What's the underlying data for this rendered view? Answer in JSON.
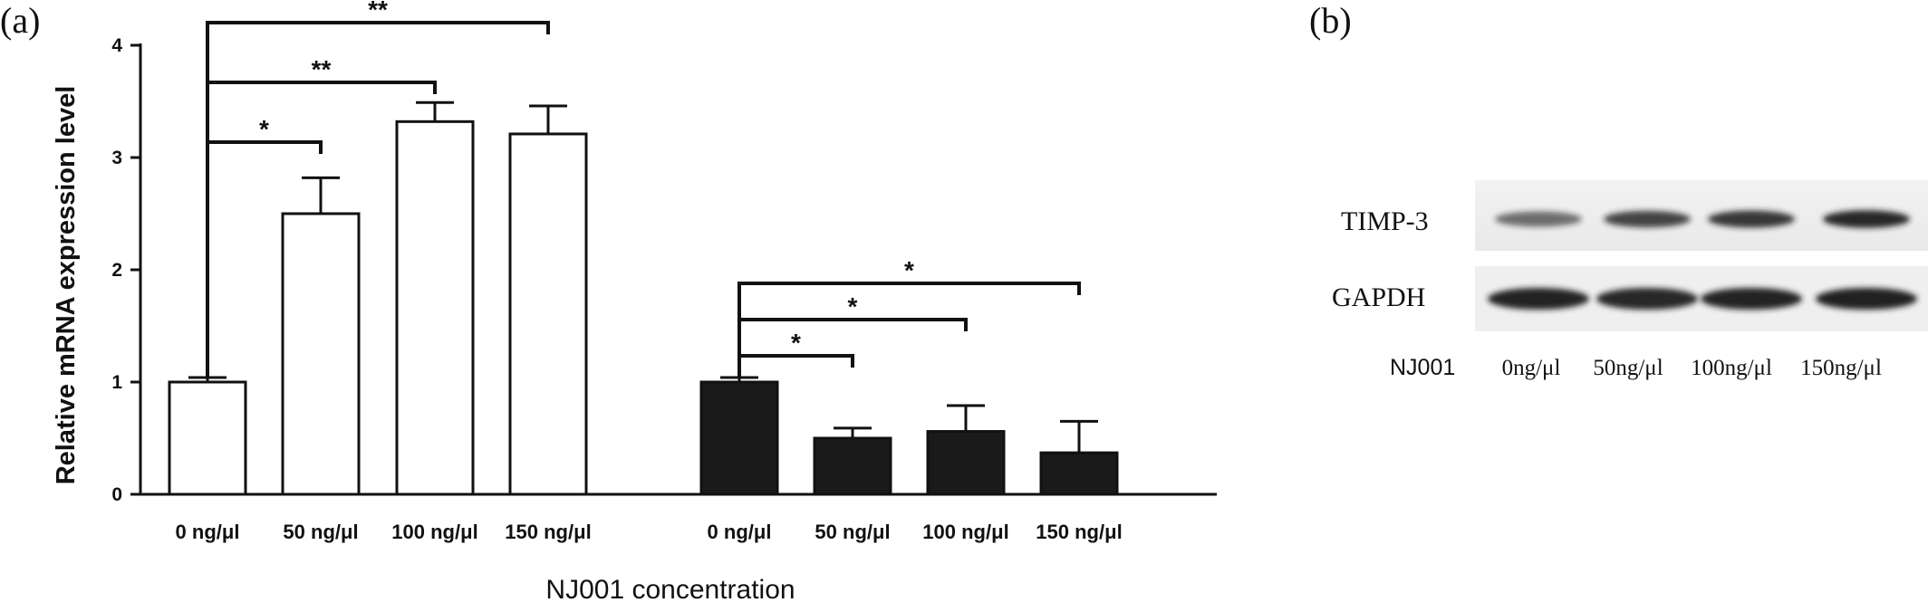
{
  "panels": {
    "a_label": "(a)",
    "b_label": "(b)"
  },
  "chart_data": {
    "type": "bar",
    "ylabel": "Relative mRNA expression level",
    "xlabel": "NJ001 concentration",
    "ylim": [
      0,
      4
    ],
    "yticks": [
      0,
      1,
      2,
      3,
      4
    ],
    "grid": false,
    "legend": "none",
    "groups": [
      {
        "fill": "#ffffff",
        "categories": [
          "0 ng/μl",
          "50 ng/μl",
          "100 ng/μl",
          "150 ng/μl"
        ],
        "values": [
          1.0,
          2.5,
          3.32,
          3.21
        ],
        "errors": [
          0.04,
          0.32,
          0.17,
          0.25
        ]
      },
      {
        "fill": "#1a1a1a",
        "categories": [
          "0 ng/μl",
          "50 ng/μl",
          "100 ng/μl",
          "150 ng/μl"
        ],
        "values": [
          1.0,
          0.5,
          0.56,
          0.37
        ],
        "errors": [
          0.04,
          0.09,
          0.23,
          0.28
        ]
      }
    ],
    "significance": [
      {
        "group": 0,
        "from": 0,
        "to": 1,
        "label": "*"
      },
      {
        "group": 0,
        "from": 0,
        "to": 2,
        "label": "**"
      },
      {
        "group": 0,
        "from": 0,
        "to": 3,
        "label": "**"
      },
      {
        "group": 1,
        "from": 0,
        "to": 1,
        "label": "*"
      },
      {
        "group": 1,
        "from": 0,
        "to": 2,
        "label": "*"
      },
      {
        "group": 1,
        "from": 0,
        "to": 3,
        "label": "*"
      }
    ]
  },
  "blot": {
    "bands": [
      {
        "label": "TIMP-3",
        "intensities": [
          0.62,
          0.8,
          0.88,
          0.95
        ]
      },
      {
        "label": "GAPDH",
        "intensities": [
          0.97,
          0.95,
          0.97,
          0.98
        ]
      }
    ],
    "row_label": "NJ001",
    "lanes": [
      "0ng/μl",
      "50ng/μl",
      "100ng/μl",
      "150ng/μl"
    ]
  },
  "colors": {
    "axis": "#111111",
    "dark_bar": "#1a1a1a",
    "band": "#1c1c1c"
  }
}
